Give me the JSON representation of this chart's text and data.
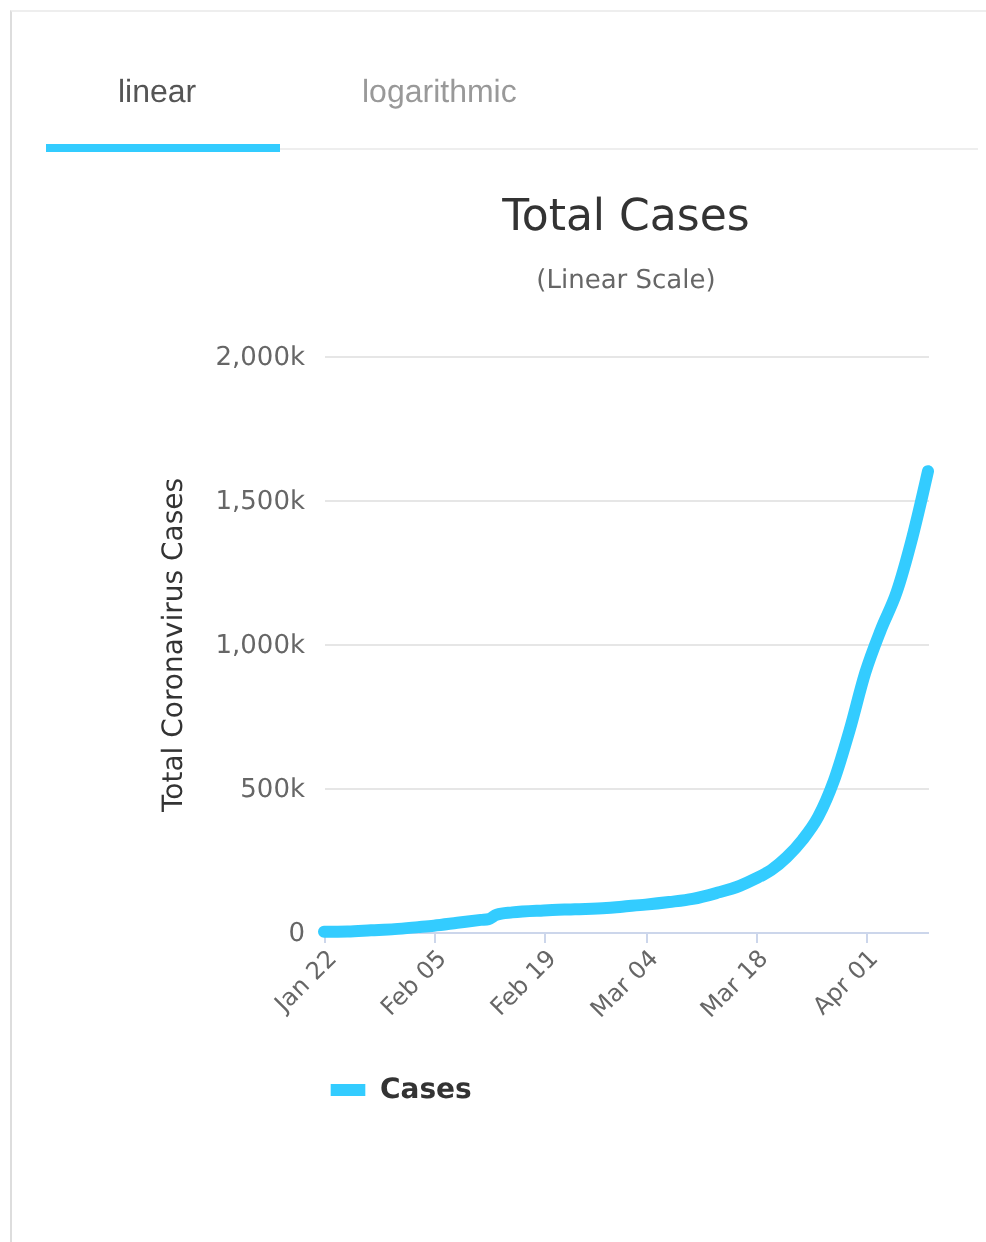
{
  "chart_data": {
    "type": "line",
    "title": "Total Cases",
    "subtitle": "(Linear Scale)",
    "ylabel": "Total Coronavirus Cases",
    "annotations": [
      "linear",
      "logarithmic"
    ],
    "x": [
      "--01-22",
      "--01-25",
      "--01-28",
      "--01-31",
      "--02-03",
      "--02-05",
      "--02-08",
      "--02-11",
      "--02-12",
      "--02-13",
      "--02-15",
      "--02-19",
      "--02-23",
      "--02-27",
      "--03-01",
      "--03-04",
      "--03-07",
      "--03-10",
      "--03-13",
      "--03-16",
      "--03-18",
      "--03-20",
      "--03-22",
      "--03-24",
      "--03-26",
      "--03-28",
      "--03-30",
      "--04-01",
      "--04-03",
      "--04-05",
      "--04-07",
      "--04-09"
    ],
    "series": [
      {
        "name": "Cases",
        "color": "#33ccff",
        "values": [
          1000,
          2000,
          6000,
          10000,
          17000,
          22000,
          32000,
          42000,
          45000,
          60000,
          68000,
          75000,
          79000,
          83000,
          88000,
          95000,
          104000,
          115000,
          135000,
          160000,
          185000,
          215000,
          260000,
          320000,
          400000,
          525000,
          700000,
          900000,
          1050000,
          1180000,
          1370000,
          1600000
        ]
      }
    ],
    "xlim": [
      "--01-22",
      "--04-09"
    ],
    "xticks": [
      {
        "value": "--01-22",
        "label": "Jan 22"
      },
      {
        "value": "--02-05",
        "label": "Feb 05"
      },
      {
        "value": "--02-19",
        "label": "Feb 19"
      },
      {
        "value": "--03-04",
        "label": "Mar 04"
      },
      {
        "value": "--03-18",
        "label": "Mar 18"
      },
      {
        "value": "--04-01",
        "label": "Apr 01"
      }
    ],
    "ylim": [
      0,
      2000000
    ],
    "yticks": [
      0,
      {
        "value": 500000,
        "label": "500k"
      },
      {
        "value": 1000000,
        "label": "1,000k"
      },
      {
        "value": 1500000,
        "label": "1,500k"
      },
      {
        "value": 2000000,
        "label": "2,000k"
      }
    ],
    "grid": "y",
    "legend": "bottom"
  }
}
